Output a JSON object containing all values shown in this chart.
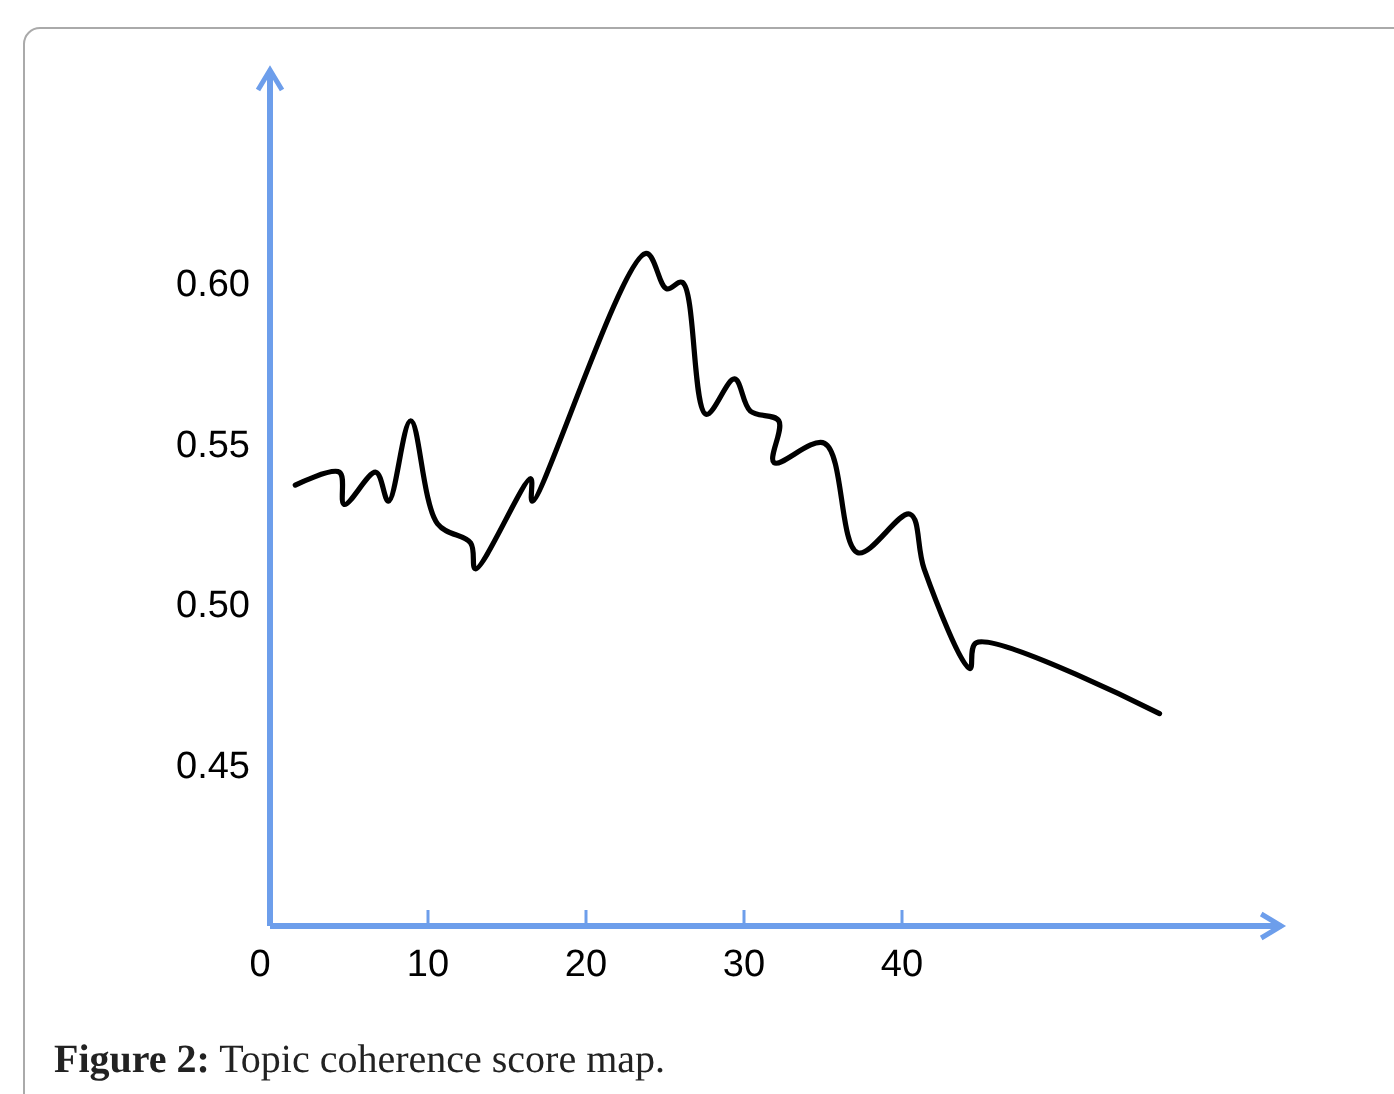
{
  "chart_data": {
    "type": "line",
    "x": [
      1.6,
      4.4,
      4.7,
      6.7,
      7.5,
      8.9,
      10.6,
      12.7,
      13.0,
      16.5,
      16.6,
      23.8,
      25.1,
      26.1,
      27.6,
      29.4,
      30.4,
      32.2,
      31.9,
      35.1,
      37.2,
      40.5,
      41.4,
      44.3,
      44.7,
      56.3
    ],
    "series": [
      {
        "color": "#000000",
        "values": [
          0.537,
          0.541,
          0.531,
          0.541,
          0.532,
          0.557,
          0.525,
          0.519,
          0.511,
          0.539,
          0.532,
          0.609,
          0.598,
          0.6,
          0.559,
          0.57,
          0.56,
          0.557,
          0.544,
          0.55,
          0.516,
          0.528,
          0.511,
          0.48,
          0.488,
          0.466
        ]
      }
    ],
    "xlim": [
      0,
      64
    ],
    "ylim": [
      0.4,
      0.666
    ],
    "xticks": [
      0,
      10,
      20,
      30,
      40
    ],
    "yticks": [
      {
        "value": 0.45,
        "label": "0.45"
      },
      {
        "value": 0.5,
        "label": "0.50"
      },
      {
        "value": 0.55,
        "label": "0.55"
      },
      {
        "value": 0.6,
        "label": "0.60"
      }
    ],
    "grid": false,
    "marker": "none",
    "line_style": "solid",
    "annotations": [
      "Figure 2: Topic coherence score map."
    ]
  }
}
